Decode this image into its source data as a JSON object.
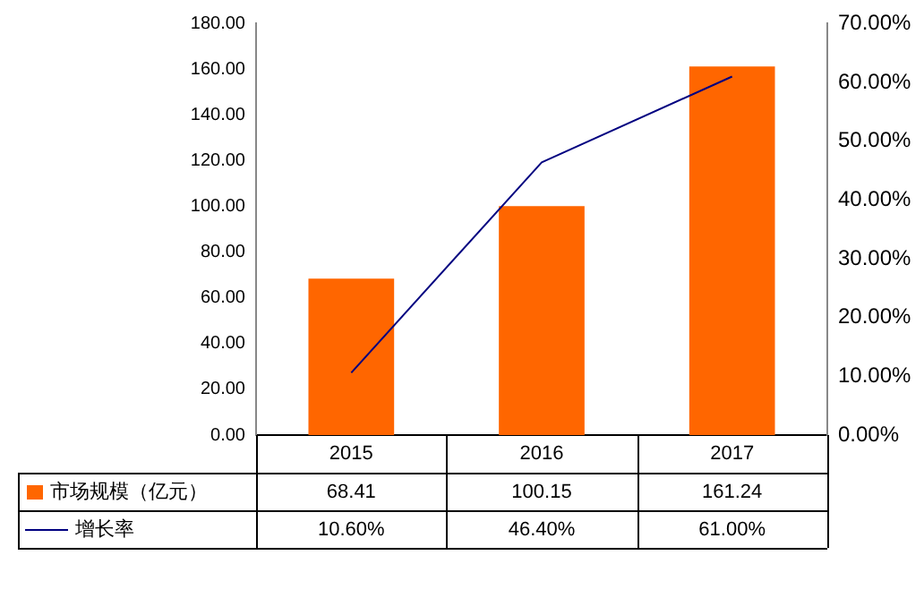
{
  "chart_data": {
    "type": "bar",
    "categories": [
      "2015",
      "2016",
      "2017"
    ],
    "series": [
      {
        "name": "市场规模（亿元）",
        "color": "#ff6600",
        "values": [
          68.41,
          100.15,
          161.24
        ],
        "value_labels": [
          "68.41",
          "100.15",
          "161.24"
        ]
      },
      {
        "name": "增长率",
        "type": "line",
        "axis": "y2",
        "color": "#000080",
        "values": [
          10.6,
          46.4,
          61.0
        ],
        "value_labels": [
          "10.60%",
          "46.40%",
          "61.00%"
        ]
      }
    ],
    "ylim": [
      0,
      180
    ],
    "yticks": [
      {
        "value": 0,
        "label": "0.00"
      },
      {
        "value": 20,
        "label": "20.00"
      },
      {
        "value": 40,
        "label": "40.00"
      },
      {
        "value": 60,
        "label": "60.00"
      },
      {
        "value": 80,
        "label": "80.00"
      },
      {
        "value": 100,
        "label": "100.00"
      },
      {
        "value": 120,
        "label": "120.00"
      },
      {
        "value": 140,
        "label": "140.00"
      },
      {
        "value": 160,
        "label": "160.00"
      },
      {
        "value": 180,
        "label": "180.00"
      }
    ],
    "y2lim": [
      0,
      70
    ],
    "y2ticks": [
      {
        "value": 0,
        "label": "0.00%"
      },
      {
        "value": 10,
        "label": "10.00%"
      },
      {
        "value": 20,
        "label": "20.00%"
      },
      {
        "value": 30,
        "label": "30.00%"
      },
      {
        "value": 40,
        "label": "40.00%"
      },
      {
        "value": 50,
        "label": "50.00%"
      },
      {
        "value": 60,
        "label": "60.00%"
      },
      {
        "value": 70,
        "label": "70.00%"
      }
    ],
    "grid": false,
    "legend": "bottom",
    "marker": "none"
  }
}
